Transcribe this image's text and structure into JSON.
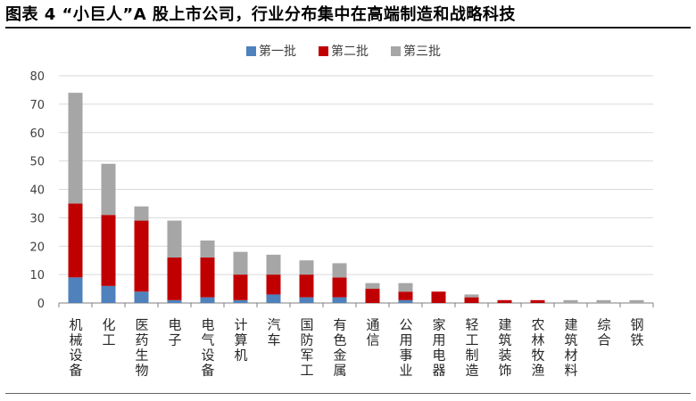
{
  "title": "图表 4 “小巨人”A 股上市公司，行业分布集中在高端制造和战略科技",
  "colors": {
    "batch1": "#4f81bd",
    "batch2": "#c00000",
    "batch3": "#a6a6a6",
    "grid": "#d9d9d9",
    "axis": "#7f7f7f",
    "text": "#404040"
  },
  "chart_data": {
    "type": "bar",
    "stacked": true,
    "title": "",
    "xlabel": "",
    "ylabel": "",
    "ylim": [
      0,
      80
    ],
    "yticks": [
      0,
      10,
      20,
      30,
      40,
      50,
      60,
      70,
      80
    ],
    "grid": true,
    "legend_position": "top-center",
    "categories": [
      "机械设备",
      "化工",
      "医药生物",
      "电子",
      "电气设备",
      "计算机",
      "汽车",
      "国防军工",
      "有色金属",
      "通信",
      "公用事业",
      "家用电器",
      "轻工制造",
      "建筑装饰",
      "农林牧渔",
      "建筑材料",
      "综合",
      "钢铁"
    ],
    "series": [
      {
        "name": "第一批",
        "color": "#4f81bd",
        "values": [
          9,
          6,
          4,
          1,
          2,
          1,
          3,
          2,
          2,
          0,
          1,
          0,
          0,
          0,
          0,
          0,
          0,
          0
        ]
      },
      {
        "name": "第二批",
        "color": "#c00000",
        "values": [
          26,
          25,
          25,
          15,
          14,
          9,
          7,
          8,
          7,
          5,
          3,
          4,
          2,
          1,
          1,
          0,
          0,
          0
        ]
      },
      {
        "name": "第三批",
        "color": "#a6a6a6",
        "values": [
          39,
          18,
          5,
          13,
          6,
          8,
          7,
          5,
          5,
          2,
          3,
          0,
          1,
          0,
          0,
          1,
          1,
          1
        ]
      }
    ]
  }
}
